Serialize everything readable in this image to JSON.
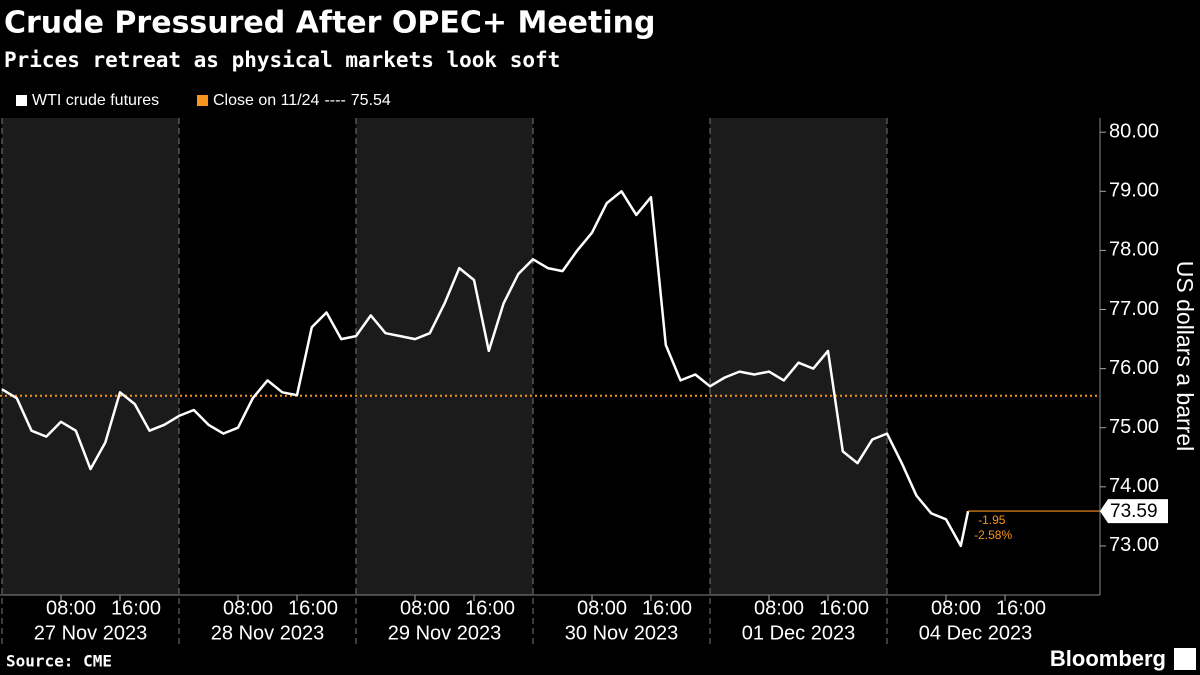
{
  "chart_data": {
    "type": "line",
    "title": "Crude Pressured After OPEC+ Meeting",
    "subtitle": "Prices retreat as physical markets look soft",
    "y_label": "US dollars a barrel",
    "source": "Source: CME",
    "brand": "Bloomberg",
    "legend_separator": "----",
    "reference": {
      "name": "Close on 11/24",
      "value": 75.54,
      "color": "#f7931e"
    },
    "change": -1.95,
    "change_percent": {
      "value": -2.58,
      "label": "-2.58%"
    },
    "day_labels": [
      {
        "value": "2023-11-27",
        "label": "27 Nov 2023"
      },
      {
        "value": "2023-11-28",
        "label": "28 Nov 2023"
      },
      {
        "value": "2023-11-29",
        "label": "29 Nov 2023"
      },
      {
        "value": "2023-11-30",
        "label": "30 Nov 2023"
      },
      {
        "value": "2023-12-01",
        "label": "01 Dec 2023"
      },
      {
        "value": "2023-12-04",
        "label": "04 Dec 2023"
      }
    ],
    "xticks": [
      {
        "value": "2023-11-27 08:00",
        "label": "08:00"
      },
      {
        "value": "2023-11-27 16:00",
        "label": "16:00"
      },
      {
        "value": "2023-11-28 08:00",
        "label": "08:00"
      },
      {
        "value": "2023-11-28 16:00",
        "label": "16:00"
      },
      {
        "value": "2023-11-29 08:00",
        "label": "08:00"
      },
      {
        "value": "2023-11-29 16:00",
        "label": "16:00"
      },
      {
        "value": "2023-11-30 08:00",
        "label": "08:00"
      },
      {
        "value": "2023-11-30 16:00",
        "label": "16:00"
      },
      {
        "value": "2023-12-01 08:00",
        "label": "08:00"
      },
      {
        "value": "2023-12-01 16:00",
        "label": "16:00"
      },
      {
        "value": "2023-12-04 08:00",
        "label": "08:00"
      },
      {
        "value": "2023-12-04 16:00",
        "label": "16:00"
      }
    ],
    "ylim": [
      72.17,
      80.24
    ],
    "yticks": [
      {
        "value": 73,
        "label": "73.00"
      },
      {
        "value": 74,
        "label": "74.00"
      },
      {
        "value": 75,
        "label": "75.00"
      },
      {
        "value": 76,
        "label": "76.00"
      },
      {
        "value": 77,
        "label": "77.00"
      },
      {
        "value": 78,
        "label": "78.00"
      },
      {
        "value": 79,
        "label": "79.00"
      },
      {
        "value": 80,
        "label": "80.00"
      }
    ],
    "series": [
      {
        "name": "WTI crude futures",
        "color": "#ffffff",
        "x": [
          "2023-11-27 00:00",
          "2023-11-27 02:00",
          "2023-11-27 04:00",
          "2023-11-27 06:00",
          "2023-11-27 08:00",
          "2023-11-27 10:00",
          "2023-11-27 12:00",
          "2023-11-27 14:00",
          "2023-11-27 16:00",
          "2023-11-27 18:00",
          "2023-11-27 20:00",
          "2023-11-27 22:00",
          "2023-11-28 00:00",
          "2023-11-28 02:00",
          "2023-11-28 04:00",
          "2023-11-28 06:00",
          "2023-11-28 08:00",
          "2023-11-28 10:00",
          "2023-11-28 12:00",
          "2023-11-28 14:00",
          "2023-11-28 16:00",
          "2023-11-28 18:00",
          "2023-11-28 20:00",
          "2023-11-28 22:00",
          "2023-11-29 00:00",
          "2023-11-29 02:00",
          "2023-11-29 04:00",
          "2023-11-29 06:00",
          "2023-11-29 08:00",
          "2023-11-29 10:00",
          "2023-11-29 12:00",
          "2023-11-29 14:00",
          "2023-11-29 16:00",
          "2023-11-29 18:00",
          "2023-11-29 20:00",
          "2023-11-29 22:00",
          "2023-11-30 00:00",
          "2023-11-30 02:00",
          "2023-11-30 04:00",
          "2023-11-30 06:00",
          "2023-11-30 08:00",
          "2023-11-30 10:00",
          "2023-11-30 12:00",
          "2023-11-30 14:00",
          "2023-11-30 16:00",
          "2023-11-30 18:00",
          "2023-11-30 20:00",
          "2023-11-30 22:00",
          "2023-12-01 00:00",
          "2023-12-01 02:00",
          "2023-12-01 04:00",
          "2023-12-01 06:00",
          "2023-12-01 08:00",
          "2023-12-01 10:00",
          "2023-12-01 12:00",
          "2023-12-01 14:00",
          "2023-12-01 16:00",
          "2023-12-01 18:00",
          "2023-12-01 20:00",
          "2023-12-01 22:00",
          "2023-12-04 00:00",
          "2023-12-04 02:00",
          "2023-12-04 04:00",
          "2023-12-04 06:00",
          "2023-12-04 08:00",
          "2023-12-04 10:00",
          "2023-12-04 11:00"
        ],
        "values": [
          75.65,
          75.5,
          74.95,
          74.85,
          75.1,
          74.95,
          74.3,
          74.75,
          75.6,
          75.4,
          74.95,
          75.05,
          75.2,
          75.3,
          75.05,
          74.9,
          75.0,
          75.5,
          75.8,
          75.6,
          75.55,
          76.7,
          76.95,
          76.5,
          76.55,
          76.9,
          76.6,
          76.55,
          76.5,
          76.6,
          77.1,
          77.7,
          77.5,
          76.3,
          77.1,
          77.6,
          77.85,
          77.7,
          77.65,
          78.0,
          78.3,
          78.8,
          79.0,
          78.6,
          78.9,
          76.4,
          75.8,
          75.9,
          75.7,
          75.85,
          75.95,
          75.9,
          75.95,
          75.8,
          76.1,
          76.0,
          76.3,
          74.6,
          74.4,
          74.8,
          74.9,
          74.4,
          73.85,
          73.55,
          73.45,
          73.0,
          73.59
        ]
      }
    ]
  }
}
